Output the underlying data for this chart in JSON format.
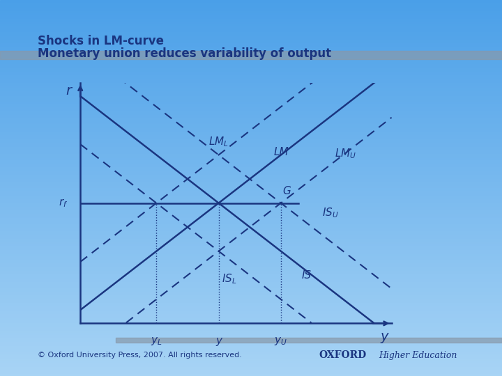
{
  "title1": "Shocks in LM-curve",
  "title2": "Monetary union reduces variability of output",
  "bg_top": "#4a9fe8",
  "bg_bottom": "#a8d4f5",
  "line_color": "#1a3580",
  "text_color": "#1a3580",
  "x_axis_label": "y",
  "y_axis_label": "r",
  "rf_label": "r$_f$",
  "yL_label": "y$_L$",
  "y_label": "y",
  "yU_label": "y$_U$",
  "LML_label": "LM$_L$",
  "LM_label": "LM",
  "LMU_label": "LM$_U$",
  "ISL_label": "IS$_L$",
  "IS_label": "IS",
  "ISU_label": "IS$_U$",
  "G_label": "G",
  "copyright": "© Oxford University Press, 2007. All rights reserved.",
  "rf": 4.5,
  "yL": 2.2,
  "y_mid": 4.0,
  "yU": 5.8,
  "xlim": [
    0,
    9
  ],
  "ylim": [
    0,
    9
  ]
}
